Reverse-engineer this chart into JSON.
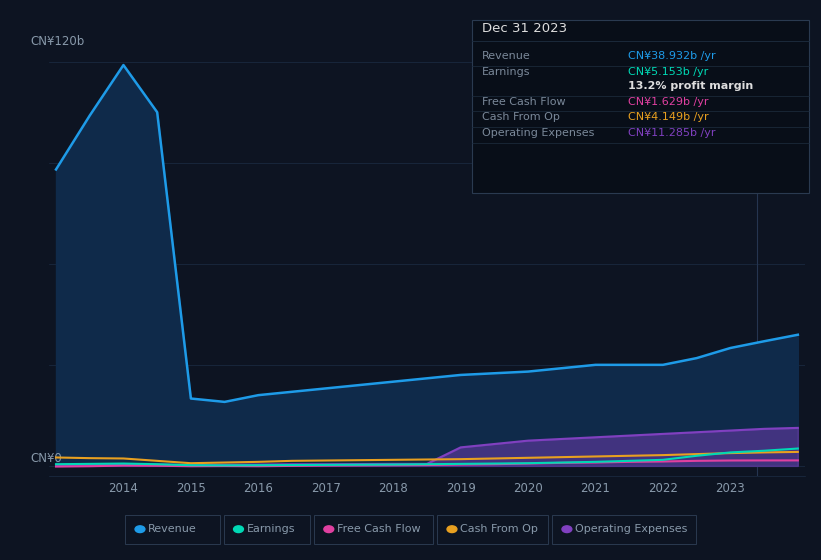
{
  "bg_color": "#0d1422",
  "plot_bg_color": "#0d1422",
  "grid_color": "#1c2d45",
  "text_color": "#8899aa",
  "title_color": "#ffffff",
  "years": [
    2013,
    2013.5,
    2014,
    2014.5,
    2015,
    2015.5,
    2016,
    2016.5,
    2017,
    2017.5,
    2018,
    2018.5,
    2019,
    2019.5,
    2020,
    2020.5,
    2021,
    2021.5,
    2022,
    2022.5,
    2023,
    2023.5,
    2024
  ],
  "revenue": [
    88,
    104,
    119,
    105,
    20,
    19,
    21,
    22,
    23,
    24,
    25,
    26,
    27,
    27.5,
    28,
    29,
    30,
    30,
    30,
    32,
    35,
    37,
    38.932
  ],
  "earnings": [
    0.5,
    0.6,
    0.7,
    0.5,
    0.2,
    0.15,
    0.2,
    0.25,
    0.3,
    0.35,
    0.4,
    0.5,
    0.6,
    0.7,
    0.8,
    1.0,
    1.2,
    1.5,
    1.8,
    3.0,
    4.0,
    4.5,
    5.153
  ],
  "free_cash_flow": [
    -0.2,
    -0.1,
    0.1,
    0.05,
    -0.1,
    -0.05,
    -0.1,
    0.0,
    0.1,
    0.15,
    0.2,
    0.25,
    0.4,
    0.5,
    0.7,
    0.9,
    1.0,
    1.2,
    1.3,
    1.5,
    1.6,
    1.62,
    1.629
  ],
  "cash_from_op": [
    2.5,
    2.3,
    2.2,
    1.5,
    0.8,
    1.0,
    1.2,
    1.5,
    1.6,
    1.7,
    1.8,
    1.9,
    2.0,
    2.2,
    2.4,
    2.6,
    2.8,
    3.0,
    3.2,
    3.5,
    3.8,
    4.0,
    4.149
  ],
  "operating_exp": [
    0.3,
    0.3,
    0.4,
    0.4,
    0.3,
    0.35,
    0.4,
    0.5,
    0.5,
    0.55,
    0.6,
    0.6,
    5.5,
    6.5,
    7.5,
    8.0,
    8.5,
    9.0,
    9.5,
    10.0,
    10.5,
    11.0,
    11.285
  ],
  "revenue_color": "#1e9be8",
  "earnings_color": "#00d9b5",
  "free_cash_flow_color": "#e040a0",
  "cash_from_op_color": "#e8a020",
  "operating_exp_color": "#8040c0",
  "revenue_fill_color": "#0f2a4a",
  "ylim": [
    -3,
    130
  ],
  "xlabel_years": [
    2014,
    2015,
    2016,
    2017,
    2018,
    2019,
    2020,
    2021,
    2022,
    2023
  ],
  "ytick_label_top": "CN¥120b",
  "ytick_label_bottom": "CN¥0",
  "info_box": {
    "title": "Dec 31 2023",
    "rows": [
      {
        "label": "Revenue",
        "value": "CN¥38.932b /yr",
        "value_color": "#1e9be8",
        "has_sub": false
      },
      {
        "label": "Earnings",
        "value": "CN¥5.153b /yr",
        "value_color": "#00d9b5",
        "has_sub": true,
        "sub": "13.2% profit margin"
      },
      {
        "label": "Free Cash Flow",
        "value": "CN¥1.629b /yr",
        "value_color": "#e040a0",
        "has_sub": false
      },
      {
        "label": "Cash From Op",
        "value": "CN¥4.149b /yr",
        "value_color": "#e8a020",
        "has_sub": false
      },
      {
        "label": "Operating Expenses",
        "value": "CN¥11.285b /yr",
        "value_color": "#8040c0",
        "has_sub": false
      }
    ]
  },
  "legend_items": [
    {
      "label": "Revenue",
      "color": "#1e9be8"
    },
    {
      "label": "Earnings",
      "color": "#00d9b5"
    },
    {
      "label": "Free Cash Flow",
      "color": "#e040a0"
    },
    {
      "label": "Cash From Op",
      "color": "#e8a020"
    },
    {
      "label": "Operating Expenses",
      "color": "#8040c0"
    }
  ]
}
